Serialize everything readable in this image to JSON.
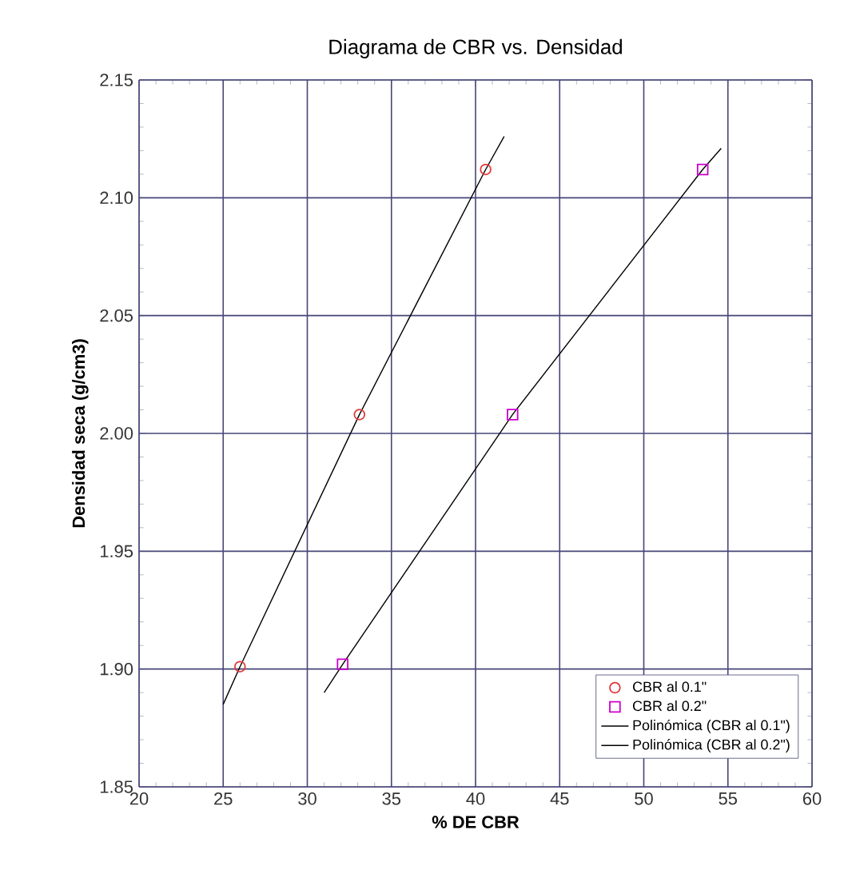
{
  "chart_data": {
    "type": "scatter",
    "title": "Diagrama de CBR vs.  Densidad",
    "xlabel": "% DE CBR",
    "ylabel": "Densidad seca (g/cm3)",
    "xlim": [
      20,
      60
    ],
    "ylim": [
      1.85,
      2.15
    ],
    "xticks": [
      20,
      25,
      30,
      35,
      40,
      45,
      50,
      55,
      60
    ],
    "yticks": [
      1.85,
      {
        "value": 1.9,
        "label": "1.90"
      },
      1.95,
      {
        "value": 2.0,
        "label": "2.00"
      },
      2.05,
      {
        "value": 2.1,
        "label": "2.10"
      },
      2.15
    ],
    "grid": true,
    "legend": "bottom right",
    "series": [
      {
        "name": "CBR al 0.1\"",
        "marker": "circle",
        "color": "#e03c3c",
        "x": [
          26.0,
          33.1,
          40.6
        ],
        "values": [
          1.901,
          2.008,
          2.112
        ]
      },
      {
        "name": "CBR al 0.2\"",
        "marker": "square",
        "color": "#cc00cc",
        "x": [
          32.1,
          42.2,
          53.5
        ],
        "values": [
          1.902,
          2.008,
          2.112
        ]
      },
      {
        "name": "Polinómica (CBR al 0.1\")",
        "type": "line",
        "marker": "none",
        "color": "#000000",
        "x": [
          25.0,
          26.0,
          33.1,
          40.6,
          41.7
        ],
        "values": [
          1.885,
          1.901,
          2.008,
          2.112,
          2.126
        ]
      },
      {
        "name": "Polinómica (CBR al 0.2\")",
        "type": "line",
        "marker": "none",
        "color": "#000000",
        "x": [
          31.0,
          32.1,
          42.2,
          53.5,
          54.6
        ],
        "values": [
          1.89,
          1.902,
          2.008,
          2.112,
          2.121
        ]
      }
    ]
  }
}
